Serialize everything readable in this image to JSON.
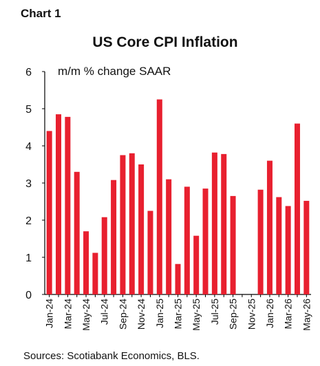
{
  "header": "Chart 1",
  "chart_data": {
    "type": "bar",
    "title": "US Core CPI Inflation",
    "y_label": "m/m % change SAAR",
    "categories": [
      "Jan-24",
      null,
      "Mar-24",
      null,
      "May-24",
      null,
      "Jul-24",
      null,
      "Sep-24",
      null,
      "Nov-24",
      null,
      "Jan-25",
      null,
      "Mar-25",
      null,
      "May-25",
      null,
      "Jul-25",
      null,
      "Sep-25",
      null,
      "Nov-25",
      null,
      "Jan-26",
      null,
      "Mar-26",
      null,
      "May-26"
    ],
    "values": [
      4.4,
      4.85,
      4.78,
      3.3,
      1.7,
      1.12,
      2.08,
      3.08,
      3.75,
      3.8,
      3.5,
      2.25,
      5.25,
      3.1,
      0.82,
      2.9,
      1.58,
      2.85,
      3.82,
      3.78,
      2.65,
      null,
      null,
      2.82,
      3.6,
      2.62,
      2.38,
      4.6,
      2.52
    ],
    "color": "#e8202f",
    "ylim": [
      0,
      6
    ],
    "yticks": [
      0,
      1,
      2,
      3,
      4,
      5,
      6
    ]
  },
  "source": "Sources: Scotiabank Economics, BLS."
}
